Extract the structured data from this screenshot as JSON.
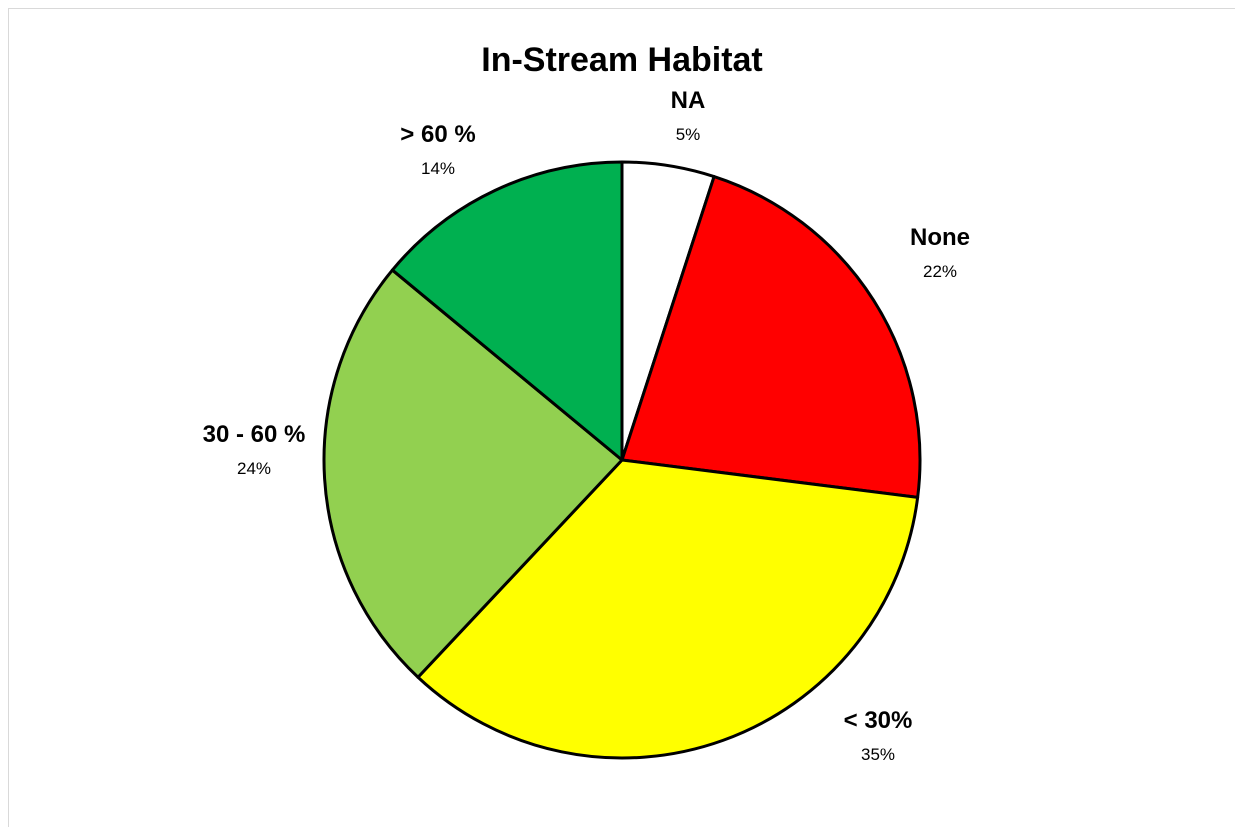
{
  "chart_data": {
    "type": "pie",
    "title": "In-Stream Habitat",
    "start_angle_deg": 0,
    "direction": "clockwise",
    "slices": [
      {
        "label": "NA",
        "value": 5,
        "value_label": "5%",
        "color": "#ffffff"
      },
      {
        "label": "None",
        "value": 22,
        "value_label": "22%",
        "color": "#ff0000"
      },
      {
        "label": "< 30%",
        "value": 35,
        "value_label": "35%",
        "color": "#ffff00"
      },
      {
        "label": "30 - 60 %",
        "value": 24,
        "value_label": "24%",
        "color": "#92d050"
      },
      {
        "label": "> 60 %",
        "value": 14,
        "value_label": "14%",
        "color": "#00b050"
      }
    ],
    "legend": "none",
    "border_color": "#000000"
  }
}
